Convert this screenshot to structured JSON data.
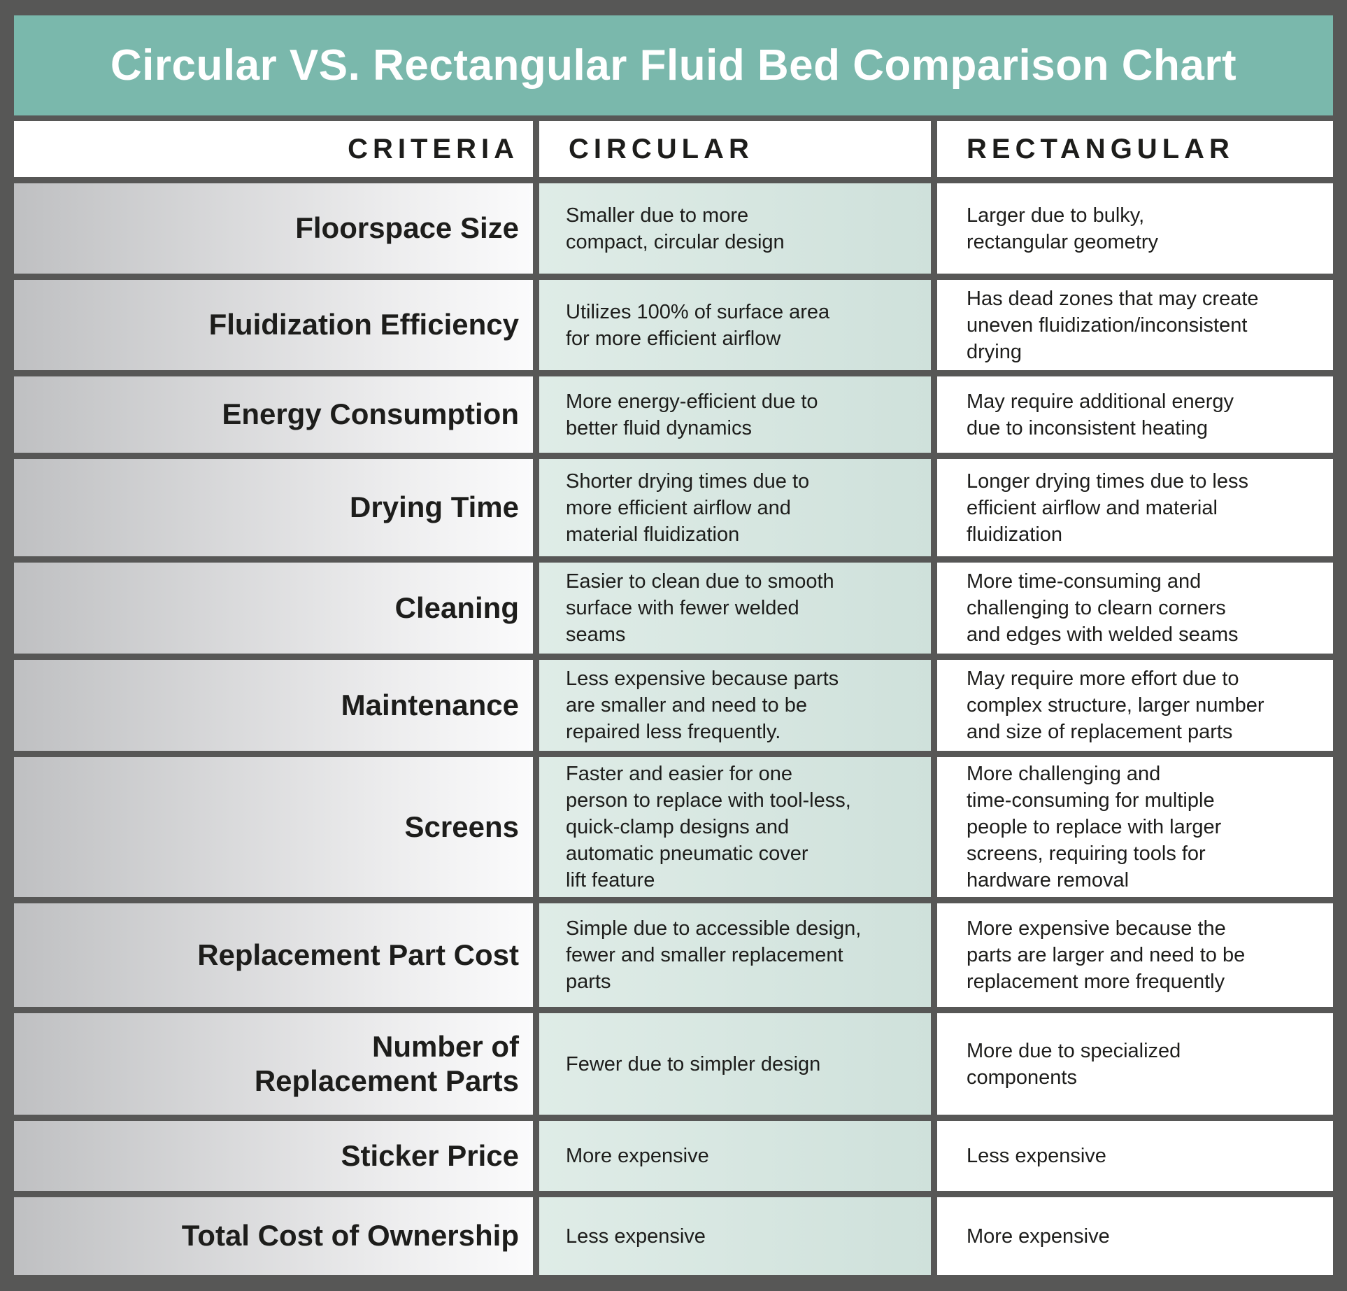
{
  "title": "Circular VS. Rectangular Fluid Bed Comparison Chart",
  "colors": {
    "frame": "#575756",
    "title_bar": "#7ab8ac",
    "title_text": "#ffffff",
    "criteria_gradient_left": "#bfc0c2",
    "criteria_gradient_right": "#fbfbfc",
    "circular_cell": "#d5e5df",
    "rectangular_cell": "#ffffff",
    "body_text": "#1d1d1b"
  },
  "chart_data": {
    "type": "table",
    "title": "Circular VS. Rectangular Fluid Bed Comparison Chart",
    "columns": [
      "CRITERIA",
      "CIRCULAR",
      "RECTANGULAR"
    ],
    "rows": [
      {
        "criteria": "Floorspace Size",
        "circular": "Smaller due to more\ncompact, circular design",
        "rectangular": "Larger due to bulky,\nrectangular geometry"
      },
      {
        "criteria": "Fluidization Efficiency",
        "circular": "Utilizes 100% of surface area\nfor more efficient airflow",
        "rectangular": "Has dead zones that may create\nuneven fluidization/inconsistent\ndrying"
      },
      {
        "criteria": "Energy Consumption",
        "circular": "More energy-efficient due to\nbetter fluid dynamics",
        "rectangular": "May require additional energy\ndue to inconsistent heating"
      },
      {
        "criteria": "Drying Time",
        "circular": "Shorter drying times due to\nmore efficient airflow and\nmaterial fluidization",
        "rectangular": "Longer drying times due to less\nefficient airflow and material\nfluidization"
      },
      {
        "criteria": "Cleaning",
        "circular": "Easier to clean due to smooth\nsurface with fewer welded\nseams",
        "rectangular": "More time-consuming and\nchallenging to clearn corners\nand edges with welded seams"
      },
      {
        "criteria": "Maintenance",
        "circular": "Less expensive because parts\nare smaller and need to be\nrepaired less frequently.",
        "rectangular": "May require more effort due to\ncomplex structure, larger number\nand size of replacement parts"
      },
      {
        "criteria": "Screens",
        "circular": "Faster and easier for one\nperson to replace with tool-less,\nquick-clamp designs and\nautomatic pneumatic cover\nlift feature",
        "rectangular": "More challenging and\ntime-consuming for multiple\npeople to replace with larger\nscreens, requiring tools for\nhardware removal"
      },
      {
        "criteria": "Replacement Part Cost",
        "circular": "Simple due to accessible design,\nfewer and smaller replacement\nparts",
        "rectangular": "More expensive because the\nparts are larger and need to be\nreplacement more frequently"
      },
      {
        "criteria": "Number of\nReplacement Parts",
        "circular": "Fewer due to simpler design",
        "rectangular": "More due to specialized\ncomponents"
      },
      {
        "criteria": "Sticker Price",
        "circular": "More expensive",
        "rectangular": "Less expensive"
      },
      {
        "criteria": "Total Cost of Ownership",
        "circular": "Less expensive",
        "rectangular": "More expensive"
      }
    ]
  }
}
